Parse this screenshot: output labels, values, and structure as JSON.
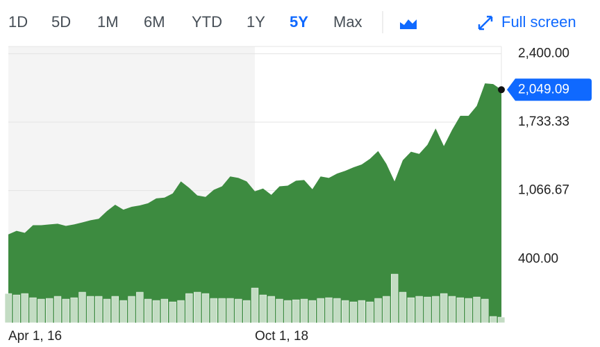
{
  "toolbar": {
    "ranges": [
      "1D",
      "5D",
      "1M",
      "6M",
      "YTD",
      "1Y",
      "5Y",
      "Max"
    ],
    "active": "5Y",
    "full_screen": "Full screen"
  },
  "chart_data": {
    "type": "area",
    "categories": [
      "Apr 1, 16",
      null,
      null,
      null,
      null,
      null,
      null,
      null,
      null,
      null,
      null,
      null,
      null,
      null,
      null,
      null,
      null,
      null,
      null,
      null,
      null,
      null,
      null,
      null,
      null,
      null,
      null,
      null,
      null,
      null,
      "Oct 1, 18",
      null,
      null,
      null,
      null,
      null,
      null,
      null,
      null,
      null,
      null,
      null,
      null,
      null,
      null,
      null,
      null,
      null,
      null,
      null,
      null,
      null,
      null,
      null,
      null,
      null,
      null,
      null,
      null,
      null,
      null
    ],
    "values": [
      640,
      675,
      655,
      730,
      730,
      737,
      744,
      723,
      737,
      757,
      778,
      792,
      867,
      929,
      881,
      909,
      922,
      943,
      991,
      998,
      1039,
      1156,
      1094,
      1019,
      1005,
      1074,
      1108,
      1204,
      1190,
      1156,
      1060,
      1087,
      1025,
      1108,
      1115,
      1163,
      1170,
      1080,
      1204,
      1190,
      1232,
      1259,
      1293,
      1321,
      1376,
      1452,
      1328,
      1156,
      1362,
      1445,
      1424,
      1513,
      1672,
      1500,
      1658,
      1795,
      1795,
      1891,
      2111,
      2104,
      2049.09
    ],
    "color": "#3d8b40",
    "volume": [
      42,
      40,
      42,
      36,
      34,
      35,
      38,
      34,
      36,
      44,
      38,
      38,
      34,
      38,
      32,
      38,
      44,
      34,
      32,
      34,
      30,
      32,
      42,
      44,
      42,
      35,
      35,
      35,
      34,
      32,
      50,
      40,
      38,
      34,
      32,
      33,
      34,
      32,
      35,
      36,
      35,
      32,
      30,
      32,
      30,
      35,
      38,
      70,
      44,
      36,
      38,
      37,
      38,
      42,
      38,
      36,
      35,
      37,
      34,
      9,
      8
    ],
    "volume_color": "#c3dcc3",
    "volume_ylim": [
      0,
      100
    ],
    "ylim": [
      -220,
      2470
    ],
    "yticks": [
      {
        "value": 2400,
        "label": "2,400.00"
      },
      {
        "value": 1733.33,
        "label": "1,733.33"
      },
      {
        "value": 1066.67,
        "label": "1,066.67"
      },
      {
        "value": 400,
        "label": "400.00"
      }
    ],
    "last_price": {
      "value": 2049.09,
      "label": "2,049.09"
    },
    "grid": true
  }
}
